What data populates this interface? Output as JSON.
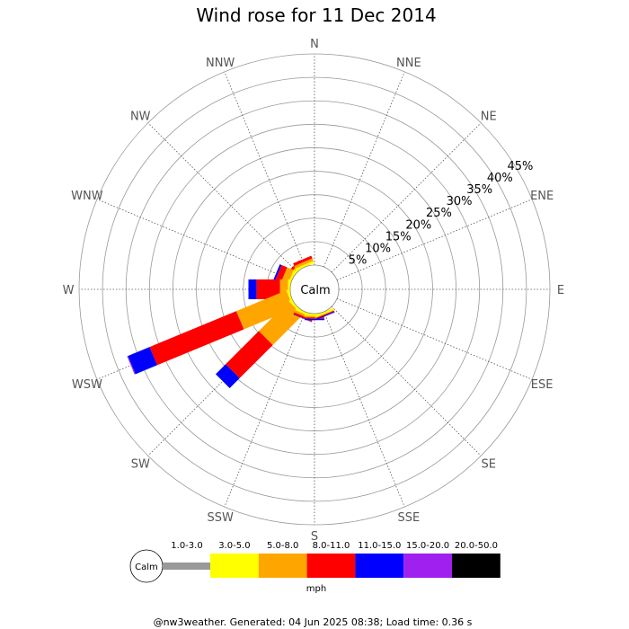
{
  "title": "Wind rose for 11 Dec 2014",
  "footer": "@nw3weather. Generated: 04 Jun 2025 08:38; Load time: 0.36 s",
  "calm_label": "Calm",
  "unit_label": "mph",
  "chart_data": {
    "type": "wind-rose",
    "title": "Wind rose for 11 Dec 2014",
    "directions": [
      "N",
      "NNE",
      "NE",
      "ENE",
      "E",
      "ESE",
      "SE",
      "SSE",
      "S",
      "SSW",
      "SW",
      "WSW",
      "W",
      "WNW",
      "NW",
      "NNW"
    ],
    "rings": [
      5,
      10,
      15,
      20,
      25,
      30,
      35,
      40,
      45
    ],
    "ring_labels": [
      "5%",
      "10%",
      "15%",
      "20%",
      "25%",
      "30%",
      "35%",
      "40%",
      "45%"
    ],
    "rmax": 45,
    "calm_label": "Calm",
    "legend": [
      {
        "label": "",
        "name": "calm",
        "color": "#999999"
      },
      {
        "label": "1.0-3.0",
        "color": "#999999"
      },
      {
        "label": "3.0-5.0",
        "color": "#ffff00"
      },
      {
        "label": "5.0-8.0",
        "color": "#ffa500"
      },
      {
        "label": "8.0-11.0",
        "color": "#ff0000"
      },
      {
        "label": "11.0-15.0",
        "color": "#0000ff"
      },
      {
        "label": "15.0-20.0",
        "color": "#a020f0"
      },
      {
        "label": "20.0-50.0",
        "color": "#000000"
      }
    ],
    "series": [
      {
        "direction": "NNE",
        "values": [
          0.0,
          0.0,
          0.0,
          0.0,
          0.0,
          0.0,
          0.0
        ]
      },
      {
        "direction": "NW",
        "values": [
          0.0,
          0.5,
          0.5,
          0.5,
          0.0,
          0.0,
          0.0
        ]
      },
      {
        "direction": "NNW",
        "values": [
          0.0,
          0.5,
          0.6,
          0.6,
          0.0,
          0.0,
          0.0
        ]
      },
      {
        "direction": "WNW",
        "values": [
          0.0,
          0.5,
          1.5,
          1.3,
          0.4,
          0.0,
          0.0
        ]
      },
      {
        "direction": "W",
        "values": [
          0.0,
          0.5,
          1.7,
          5.0,
          1.7,
          0.0,
          0.0
        ]
      },
      {
        "direction": "WSW",
        "values": [
          0.0,
          0.5,
          11.5,
          20.0,
          5.0,
          0.2,
          0.0
        ]
      },
      {
        "direction": "SW",
        "values": [
          0.0,
          0.5,
          9.0,
          10.0,
          3.0,
          0.0,
          0.0
        ]
      },
      {
        "direction": "SSW",
        "values": [
          0.0,
          0.5,
          0.5,
          0.4,
          0.1,
          0.0,
          0.0
        ]
      },
      {
        "direction": "S",
        "values": [
          0.0,
          0.5,
          0.3,
          0.3,
          0.3,
          0.0,
          0.0
        ]
      },
      {
        "direction": "SSE",
        "values": [
          0.0,
          0.5,
          0.1,
          0.2,
          0.2,
          0.0,
          0.0
        ]
      }
    ]
  }
}
